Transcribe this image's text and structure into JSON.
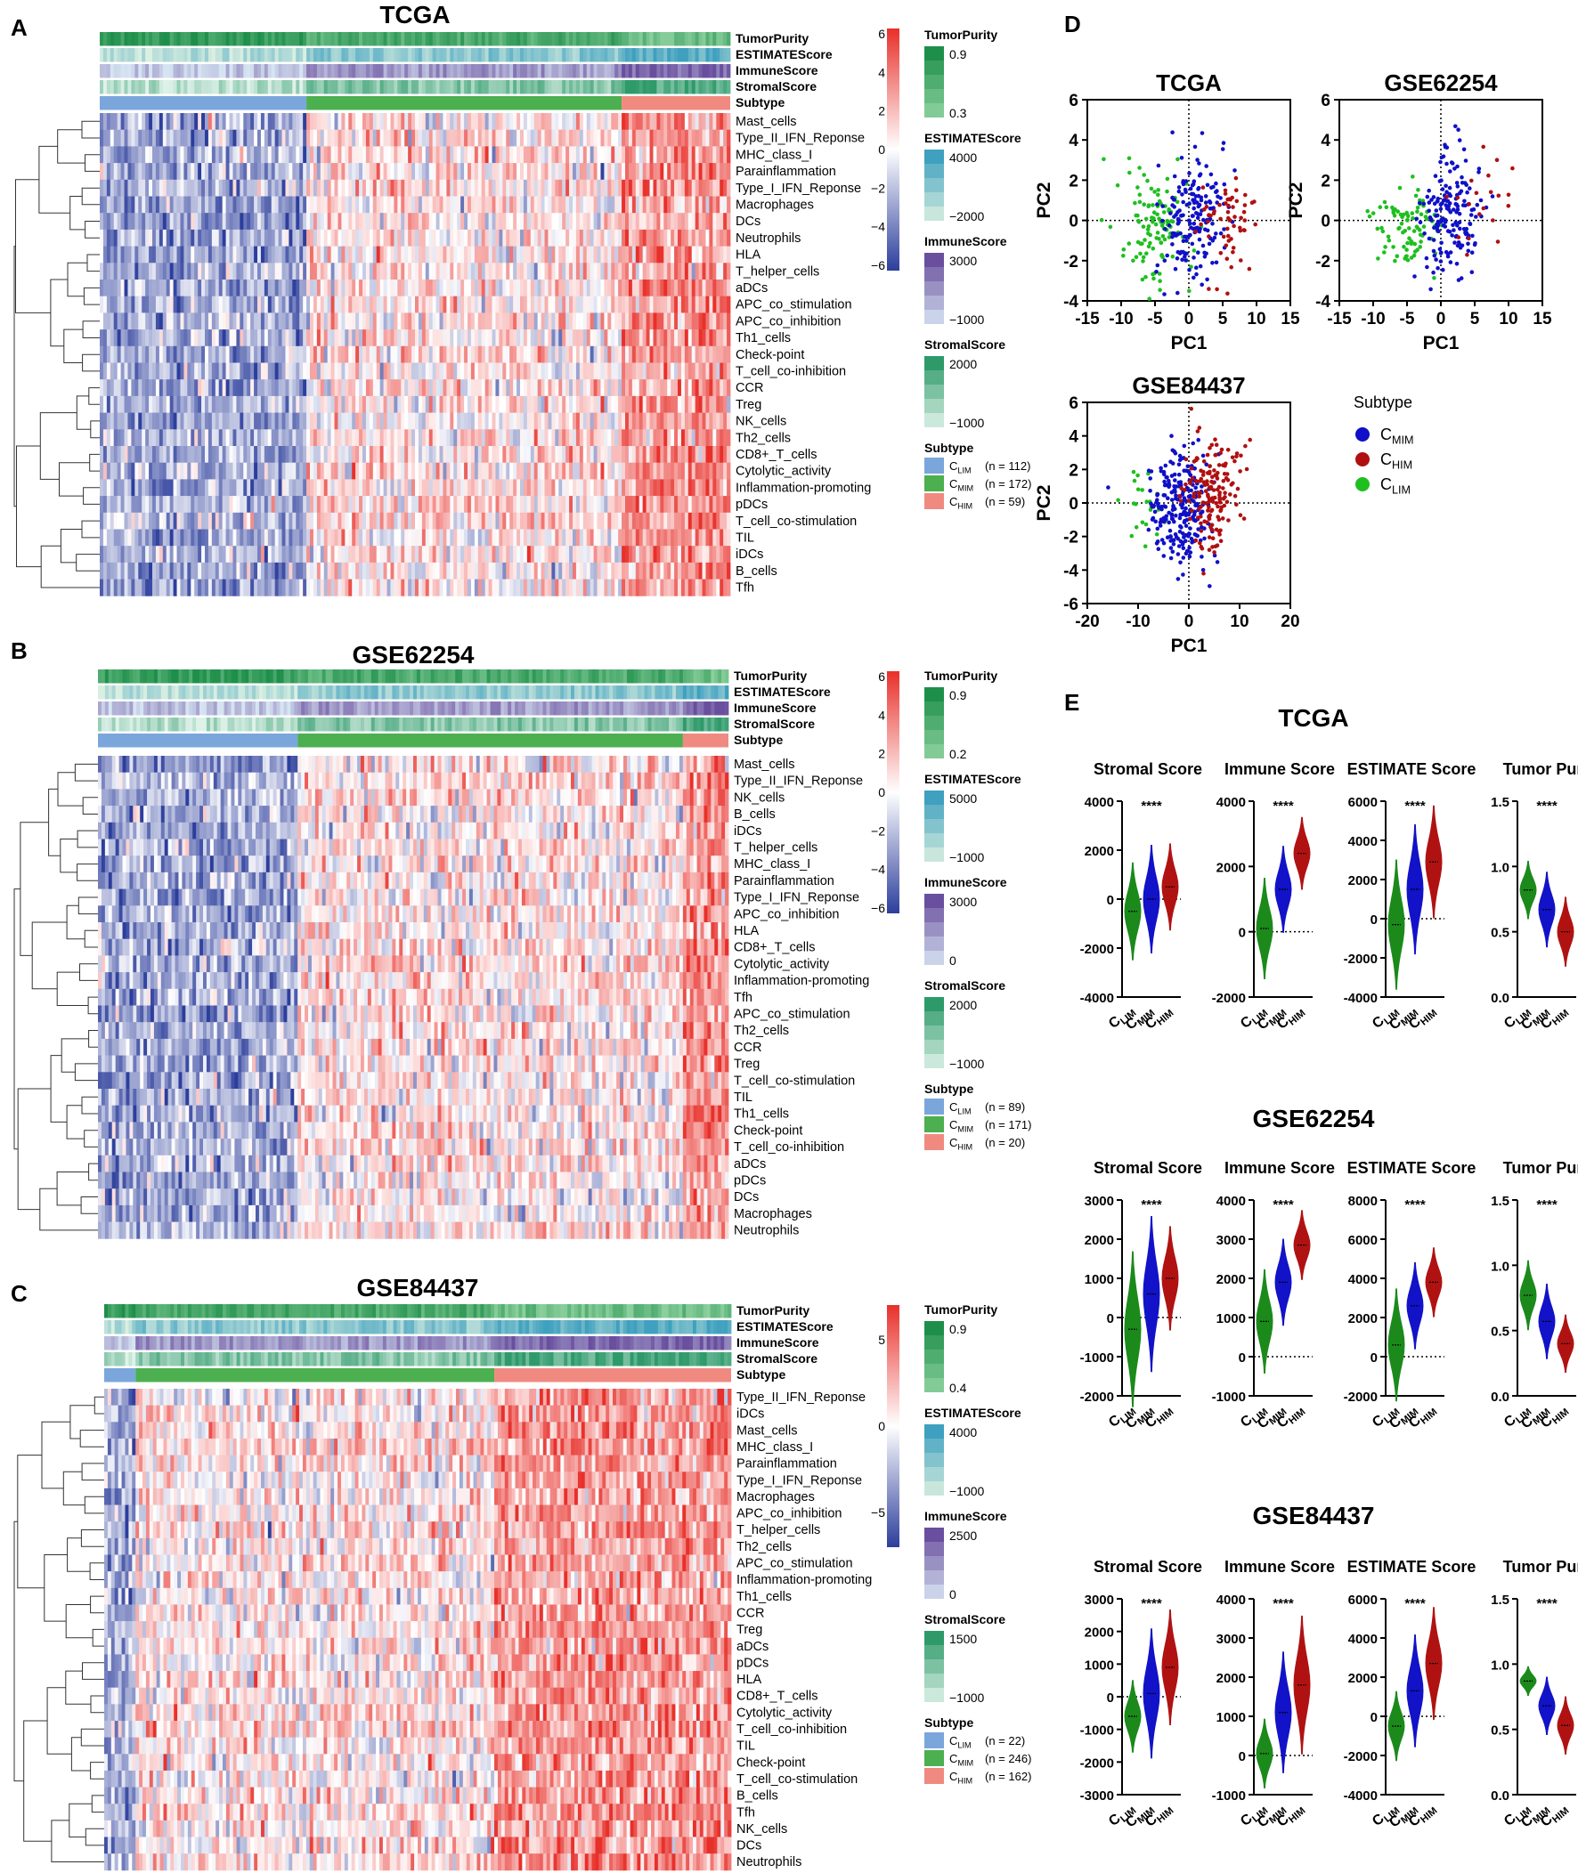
{
  "panel_letters": [
    "A",
    "B",
    "C",
    "D",
    "E"
  ],
  "colors": {
    "clim": "#7aa6dc",
    "cmim": "#4caf50",
    "chim": "#f08a80",
    "pca_clim": "#1fbf1f",
    "pca_cmim": "#1010c8",
    "pca_chim": "#b01010",
    "violin_clim": "#1b8a1b",
    "violin_cmim": "#1212c8",
    "violin_chim": "#b01212",
    "heat_low": "#2c3e9c",
    "heat_mid": "#ffffff",
    "heat_high": "#e8302a"
  },
  "chart_data": [
    {
      "type": "heatmap",
      "panel": "A",
      "title": "TCGA",
      "annotation_tracks": [
        "TumorPurity",
        "ESTIMATEScore",
        "ImmuneScore",
        "StromalScore",
        "Subtype"
      ],
      "rows": [
        "Mast_cells",
        "Type_II_IFN_Reponse",
        "MHC_class_I",
        "Parainflammation",
        "Type_I_IFN_Reponse",
        "Macrophages",
        "DCs",
        "Neutrophils",
        "HLA",
        "T_helper_cells",
        "aDCs",
        "APC_co_stimulation",
        "APC_co_inhibition",
        "Th1_cells",
        "Check-point",
        "T_cell_co-inhibition",
        "CCR",
        "Treg",
        "NK_cells",
        "Th2_cells",
        "CD8+_T_cells",
        "Cytolytic_activity",
        "Inflammation-promoting",
        "pDCs",
        "T_cell_co-stimulation",
        "TIL",
        "iDCs",
        "B_cells",
        "Tfh"
      ],
      "subtype_fractions": [
        0.327,
        0.501,
        0.172
      ],
      "color_scale": {
        "ticks": [
          "6",
          "4",
          "2",
          "0",
          "−2",
          "−4",
          "−6"
        ],
        "range": [
          -6,
          6
        ]
      },
      "legends": [
        {
          "title": "TumorPurity",
          "labels": [
            "0.9",
            "0.3"
          ]
        },
        {
          "title": "ESTIMATEScore",
          "labels": [
            "4000",
            "−2000"
          ]
        },
        {
          "title": "ImmuneScore",
          "labels": [
            "3000",
            "−1000"
          ]
        },
        {
          "title": "StromalScore",
          "labels": [
            "2000",
            "−1000"
          ]
        }
      ],
      "subtype_legend": {
        "title": "Subtype",
        "labels": [
          "C",
          "C",
          "C"
        ],
        "subs": [
          "LIM",
          "MIM",
          "HIM"
        ],
        "counts": [
          "(n =  112)",
          "(n = 172)",
          "(n = 59)"
        ]
      }
    },
    {
      "type": "heatmap",
      "panel": "B",
      "title": "GSE62254",
      "annotation_tracks": [
        "TumorPurity",
        "ESTIMATEScore",
        "ImmuneScore",
        "StromalScore",
        "Subtype"
      ],
      "rows": [
        "Mast_cells",
        "Type_II_IFN_Reponse",
        "NK_cells",
        "B_cells",
        "iDCs",
        "T_helper_cells",
        "MHC_class_I",
        "Parainflammation",
        "Type_I_IFN_Reponse",
        "APC_co_inhibition",
        "HLA",
        "CD8+_T_cells",
        "Cytolytic_activity",
        "Inflammation-promoting",
        "Tfh",
        "APC_co_stimulation",
        "Th2_cells",
        "CCR",
        "Treg",
        "T_cell_co-stimulation",
        "TIL",
        "Th1_cells",
        "Check-point",
        "T_cell_co-inhibition",
        "aDCs",
        "pDCs",
        "DCs",
        "Macrophages",
        "Neutrophils"
      ],
      "subtype_fractions": [
        0.318,
        0.611,
        0.071
      ],
      "color_scale": {
        "ticks": [
          "6",
          "4",
          "2",
          "0",
          "−2",
          "−4",
          "−6"
        ],
        "range": [
          -6,
          6
        ]
      },
      "legends": [
        {
          "title": "TumorPurity",
          "labels": [
            "0.9",
            "0.2"
          ]
        },
        {
          "title": "ESTIMATEScore",
          "labels": [
            "5000",
            "−1000"
          ]
        },
        {
          "title": "ImmuneScore",
          "labels": [
            "3000",
            "0"
          ]
        },
        {
          "title": "StromalScore",
          "labels": [
            "2000",
            "−1000"
          ]
        }
      ],
      "subtype_legend": {
        "title": "Subtype",
        "labels": [
          "C",
          "C",
          "C"
        ],
        "subs": [
          "LIM",
          "MIM",
          "HIM"
        ],
        "counts": [
          "(n = 89)",
          "(n = 171)",
          "(n = 20)"
        ]
      }
    },
    {
      "type": "heatmap",
      "panel": "C",
      "title": "GSE84437",
      "annotation_tracks": [
        "TumorPurity",
        "ESTIMATEScore",
        "ImmuneScore",
        "StromalScore",
        "Subtype"
      ],
      "rows": [
        "Type_II_IFN_Reponse",
        "iDCs",
        "Mast_cells",
        "MHC_class_I",
        "Parainflammation",
        "Type_I_IFN_Reponse",
        "Macrophages",
        "APC_co_inhibition",
        "T_helper_cells",
        "Th2_cells",
        "APC_co_stimulation",
        "Inflammation-promoting",
        "Th1_cells",
        "CCR",
        "Treg",
        "aDCs",
        "pDCs",
        "HLA",
        "CD8+_T_cells",
        "Cytolytic_activity",
        "T_cell_co-inhibition",
        "TIL",
        "Check-point",
        "T_cell_co-stimulation",
        "B_cells",
        "Tfh",
        "NK_cells",
        "DCs",
        "Neutrophils"
      ],
      "subtype_fractions": [
        0.051,
        0.572,
        0.377
      ],
      "color_scale": {
        "ticks": [
          "5",
          "0",
          "−5"
        ],
        "range": [
          -7,
          7
        ]
      },
      "legends": [
        {
          "title": "TumorPurity",
          "labels": [
            "0.9",
            "0.4"
          ]
        },
        {
          "title": "ESTIMATEScore",
          "labels": [
            "4000",
            "−1000"
          ]
        },
        {
          "title": "ImmuneScore",
          "labels": [
            "2500",
            "0"
          ]
        },
        {
          "title": "StromalScore",
          "labels": [
            "1500",
            "−1000"
          ]
        }
      ],
      "subtype_legend": {
        "title": "Subtype",
        "labels": [
          "C",
          "C",
          "C"
        ],
        "subs": [
          "LIM",
          "MIM",
          "HIM"
        ],
        "counts": [
          "(n = 22)",
          "(n = 246)",
          "(n = 162)"
        ]
      }
    },
    {
      "type": "scatter",
      "panel": "D",
      "title": "TCGA",
      "xlabel": "PC1",
      "ylabel": "PC2",
      "xlim": [
        -15,
        15
      ],
      "ylim": [
        -4,
        6
      ],
      "xticks": [
        "-15",
        "-10",
        "-5",
        "0",
        "5",
        "10",
        "15"
      ],
      "yticks": [
        "-4",
        "-2",
        "0",
        "2",
        "4",
        "6"
      ],
      "series": [
        {
          "name": "CLIM",
          "n": 112,
          "x_mean": -5.5,
          "x_sd": 2.6,
          "y_mean": -0.2,
          "y_sd": 1.3
        },
        {
          "name": "CMIM",
          "n": 172,
          "x_mean": 0.5,
          "x_sd": 2.4,
          "y_mean": 0.2,
          "y_sd": 1.5
        },
        {
          "name": "CHIM",
          "n": 59,
          "x_mean": 5.5,
          "x_sd": 2.2,
          "y_mean": 0.0,
          "y_sd": 1.6
        }
      ]
    },
    {
      "type": "scatter",
      "panel": "D",
      "title": "GSE62254",
      "xlabel": "PC1",
      "ylabel": "PC2",
      "xlim": [
        -15,
        15
      ],
      "ylim": [
        -4,
        6
      ],
      "xticks": [
        "-15",
        "-10",
        "-5",
        "0",
        "5",
        "10",
        "15"
      ],
      "yticks": [
        "-4",
        "-2",
        "0",
        "2",
        "4",
        "6"
      ],
      "series": [
        {
          "name": "CLIM",
          "n": 89,
          "x_mean": -5.0,
          "x_sd": 2.4,
          "y_mean": -0.3,
          "y_sd": 1.0
        },
        {
          "name": "CMIM",
          "n": 171,
          "x_mean": 1.5,
          "x_sd": 2.3,
          "y_mean": 0.3,
          "y_sd": 1.5
        },
        {
          "name": "CHIM",
          "n": 20,
          "x_mean": 6.5,
          "x_sd": 2.2,
          "y_mean": 1.0,
          "y_sd": 1.4
        }
      ]
    },
    {
      "type": "scatter",
      "panel": "D",
      "title": "GSE84437",
      "xlabel": "PC1",
      "ylabel": "PC2",
      "xlim": [
        -20,
        20
      ],
      "ylim": [
        -6,
        6
      ],
      "xticks": [
        "-20",
        "-10",
        "0",
        "10",
        "20"
      ],
      "yticks": [
        "-6",
        "-4",
        "-2",
        "0",
        "2",
        "4",
        "6"
      ],
      "series": [
        {
          "name": "CLIM",
          "n": 22,
          "x_mean": -9.0,
          "x_sd": 2.5,
          "y_mean": 0.0,
          "y_sd": 1.2
        },
        {
          "name": "CMIM",
          "n": 246,
          "x_mean": -1.5,
          "x_sd": 3.0,
          "y_mean": -0.3,
          "y_sd": 1.6
        },
        {
          "name": "CHIM",
          "n": 162,
          "x_mean": 4.5,
          "x_sd": 3.0,
          "y_mean": 0.6,
          "y_sd": 1.6
        }
      ]
    },
    {
      "type": "violin",
      "panel": "E",
      "title": "TCGA",
      "categories": [
        "LIM",
        "MIM",
        "HIM"
      ],
      "significance": "****",
      "subplots": [
        {
          "title": "Stromal Score",
          "ylim": [
            -4000,
            4000
          ],
          "yticks": [
            "-4000",
            "-2000",
            "0",
            "2000",
            "4000"
          ],
          "refline": 0,
          "medians": [
            -500,
            0,
            500
          ],
          "spreads": [
            900,
            1000,
            800
          ]
        },
        {
          "title": "Immune Score",
          "ylim": [
            -2000,
            4000
          ],
          "yticks": [
            "-2000",
            "0",
            "2000",
            "4000"
          ],
          "refline": 0,
          "medians": [
            100,
            1300,
            2400
          ],
          "spreads": [
            700,
            600,
            500
          ]
        },
        {
          "title": "ESTIMATE Score",
          "ylim": [
            -4000,
            6000
          ],
          "yticks": [
            "-4000",
            "-2000",
            "0",
            "2000",
            "4000",
            "6000"
          ],
          "refline": 0,
          "medians": [
            -300,
            1500,
            2900
          ],
          "spreads": [
            1500,
            1500,
            1300
          ]
        },
        {
          "title": "Tumor Purity",
          "ylim": [
            0.0,
            1.5
          ],
          "yticks": [
            "0.0",
            "0.5",
            "1.0",
            "1.5"
          ],
          "refline": null,
          "medians": [
            0.82,
            0.67,
            0.5
          ],
          "spreads": [
            0.1,
            0.13,
            0.12
          ]
        }
      ]
    },
    {
      "type": "violin",
      "panel": "E",
      "title": "GSE62254",
      "categories": [
        "LIM",
        "MIM",
        "HIM"
      ],
      "significance": "****",
      "subplots": [
        {
          "title": "Stromal Score",
          "ylim": [
            -2000,
            3000
          ],
          "yticks": [
            "-2000",
            "-1000",
            "0",
            "1000",
            "2000",
            "3000"
          ],
          "refline": 0,
          "medians": [
            -300,
            600,
            1000
          ],
          "spreads": [
            900,
            900,
            600
          ]
        },
        {
          "title": "Immune Score",
          "ylim": [
            -1000,
            4000
          ],
          "yticks": [
            "-1000",
            "0",
            "1000",
            "2000",
            "3000",
            "4000"
          ],
          "refline": 0,
          "medians": [
            900,
            1900,
            2850
          ],
          "spreads": [
            600,
            500,
            400
          ]
        },
        {
          "title": "ESTIMATE Score",
          "ylim": [
            -2000,
            8000
          ],
          "yticks": [
            "-2000",
            "0",
            "2000",
            "4000",
            "6000",
            "8000"
          ],
          "refline": 0,
          "medians": [
            600,
            2600,
            3800
          ],
          "spreads": [
            1300,
            1000,
            800
          ]
        },
        {
          "title": "Tumor Purity",
          "ylim": [
            0.0,
            1.5
          ],
          "yticks": [
            "0.0",
            "0.5",
            "1.0",
            "1.5"
          ],
          "refline": null,
          "medians": [
            0.77,
            0.57,
            0.4
          ],
          "spreads": [
            0.12,
            0.13,
            0.1
          ]
        }
      ]
    },
    {
      "type": "violin",
      "panel": "E",
      "title": "GSE84437",
      "categories": [
        "LIM",
        "MIM",
        "HIM"
      ],
      "significance": "****",
      "subplots": [
        {
          "title": "Stromal Score",
          "ylim": [
            -3000,
            3000
          ],
          "yticks": [
            "-3000",
            "-2000",
            "-1000",
            "0",
            "1000",
            "2000",
            "3000"
          ],
          "refline": 0,
          "medians": [
            -600,
            100,
            900
          ],
          "spreads": [
            500,
            900,
            800
          ]
        },
        {
          "title": "Immune Score",
          "ylim": [
            -1000,
            4000
          ],
          "yticks": [
            "-1000",
            "0",
            "1000",
            "2000",
            "3000",
            "4000"
          ],
          "refline": 0,
          "medians": [
            50,
            1100,
            1800
          ],
          "spreads": [
            400,
            700,
            800
          ]
        },
        {
          "title": "ESTIMATE Score",
          "ylim": [
            -4000,
            6000
          ],
          "yticks": [
            "-4000",
            "-2000",
            "0",
            "2000",
            "4000",
            "6000"
          ],
          "refline": 0,
          "medians": [
            -500,
            1300,
            2700
          ],
          "spreads": [
            800,
            1300,
            1300
          ]
        },
        {
          "title": "Tumor Purity",
          "ylim": [
            0.0,
            1.5
          ],
          "yticks": [
            "0.0",
            "0.5",
            "1.0",
            "1.5"
          ],
          "refline": null,
          "medians": [
            0.87,
            0.68,
            0.53
          ],
          "spreads": [
            0.05,
            0.1,
            0.1
          ]
        }
      ]
    }
  ],
  "pca_legend": {
    "title": "Subtype",
    "labels": [
      "C",
      "C",
      "C"
    ],
    "subs": [
      "MIM",
      "HIM",
      "LIM"
    ]
  }
}
